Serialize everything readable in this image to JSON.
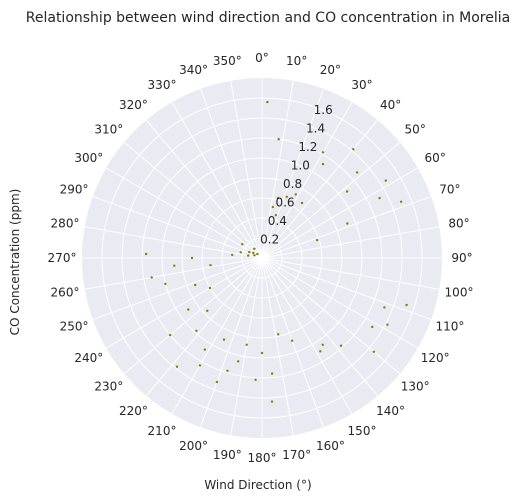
{
  "chart_data": {
    "type": "scatter",
    "projection": "polar",
    "title": "Relationship between wind direction and CO concentration in Morelia",
    "xlabel": "Wind Direction (°)",
    "ylabel": "CO Concentration (ppm)",
    "theta_zero": "top",
    "theta_direction": "clockwise",
    "angle_ticks": [
      "0°",
      "10°",
      "20°",
      "30°",
      "40°",
      "50°",
      "60°",
      "70°",
      "80°",
      "90°",
      "100°",
      "110°",
      "120°",
      "130°",
      "140°",
      "150°",
      "160°",
      "170°",
      "180°",
      "190°",
      "200°",
      "210°",
      "220°",
      "230°",
      "240°",
      "250°",
      "260°",
      "270°",
      "280°",
      "290°",
      "300°",
      "310°",
      "320°",
      "330°",
      "340°",
      "350°"
    ],
    "radial_ticks": [
      "0.2",
      "0.4",
      "0.6",
      "0.8",
      "1.0",
      "1.2",
      "1.4",
      "1.6"
    ],
    "rlim": [
      0,
      1.8
    ],
    "grid": true,
    "marker_color": "#808000",
    "background": "#eaeaf2",
    "points": [
      [
        2,
        1.56
      ],
      [
        8,
        1.2
      ],
      [
        12,
        0.52
      ],
      [
        15,
        0.62
      ],
      [
        18,
        0.45
      ],
      [
        22,
        0.66
      ],
      [
        28,
        0.72
      ],
      [
        30,
        1.22
      ],
      [
        33,
        1.12
      ],
      [
        36,
        0.68
      ],
      [
        40,
        1.42
      ],
      [
        48,
        1.28
      ],
      [
        52,
        1.08
      ],
      [
        58,
        1.46
      ],
      [
        63,
        1.32
      ],
      [
        68,
        0.92
      ],
      [
        68,
        1.5
      ],
      [
        72,
        0.58
      ],
      [
        108,
        1.52
      ],
      [
        112,
        1.32
      ],
      [
        118,
        1.42
      ],
      [
        122,
        1.3
      ],
      [
        130,
        1.46
      ],
      [
        138,
        1.18
      ],
      [
        145,
        1.06
      ],
      [
        148,
        1.1
      ],
      [
        160,
        0.88
      ],
      [
        168,
        0.78
      ],
      [
        175,
        1.16
      ],
      [
        176,
        1.44
      ],
      [
        180,
        0.95
      ],
      [
        183,
        1.22
      ],
      [
        190,
        0.88
      ],
      [
        193,
        1.06
      ],
      [
        197,
        1.18
      ],
      [
        200,
        1.32
      ],
      [
        205,
        0.9
      ],
      [
        210,
        1.24
      ],
      [
        212,
        1.08
      ],
      [
        218,
        1.38
      ],
      [
        222,
        0.98
      ],
      [
        226,
        0.76
      ],
      [
        230,
        1.2
      ],
      [
        235,
        0.9
      ],
      [
        240,
        0.6
      ],
      [
        248,
        0.72
      ],
      [
        255,
        1.0
      ],
      [
        260,
        1.12
      ],
      [
        262,
        0.52
      ],
      [
        265,
        0.88
      ],
      [
        270,
        0.7
      ],
      [
        272,
        1.16
      ],
      [
        276,
        0.3
      ],
      [
        280,
        0.14
      ],
      [
        285,
        0.22
      ],
      [
        290,
        0.08
      ],
      [
        295,
        0.14
      ],
      [
        300,
        0.1
      ],
      [
        305,
        0.24
      ],
      [
        310,
        0.06
      ],
      [
        320,
        0.12
      ]
    ]
  }
}
